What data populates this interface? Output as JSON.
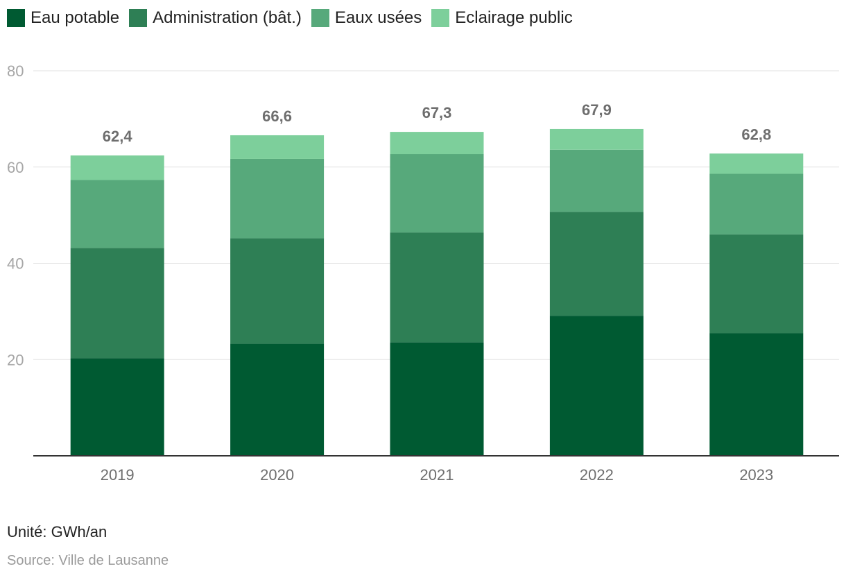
{
  "chart_data": {
    "type": "bar",
    "stacked": true,
    "categories": [
      "2019",
      "2020",
      "2021",
      "2022",
      "2023"
    ],
    "series": [
      {
        "name": "Eau potable",
        "color": "#005a32",
        "values": [
          20.3,
          23.3,
          23.6,
          29.1,
          25.5
        ]
      },
      {
        "name": "Administration (bât.)",
        "color": "#2e7f55",
        "values": [
          22.9,
          21.9,
          22.8,
          21.6,
          20.5
        ]
      },
      {
        "name": "Eaux usées",
        "color": "#57a97b",
        "values": [
          14.1,
          16.5,
          16.3,
          12.9,
          12.6
        ]
      },
      {
        "name": "Eclairage public",
        "color": "#7dcf9b",
        "values": [
          5.1,
          4.9,
          4.6,
          4.3,
          4.2
        ]
      }
    ],
    "totals": [
      "62,4",
      "66,6",
      "67,3",
      "67,9",
      "62,8"
    ],
    "yticks": [
      "20",
      "40",
      "60",
      "80"
    ],
    "ylim": [
      0,
      80
    ],
    "grid": true,
    "legend": "top-left"
  },
  "footer": {
    "unit": "Unité: GWh/an",
    "source": "Source: Ville de Lausanne"
  }
}
